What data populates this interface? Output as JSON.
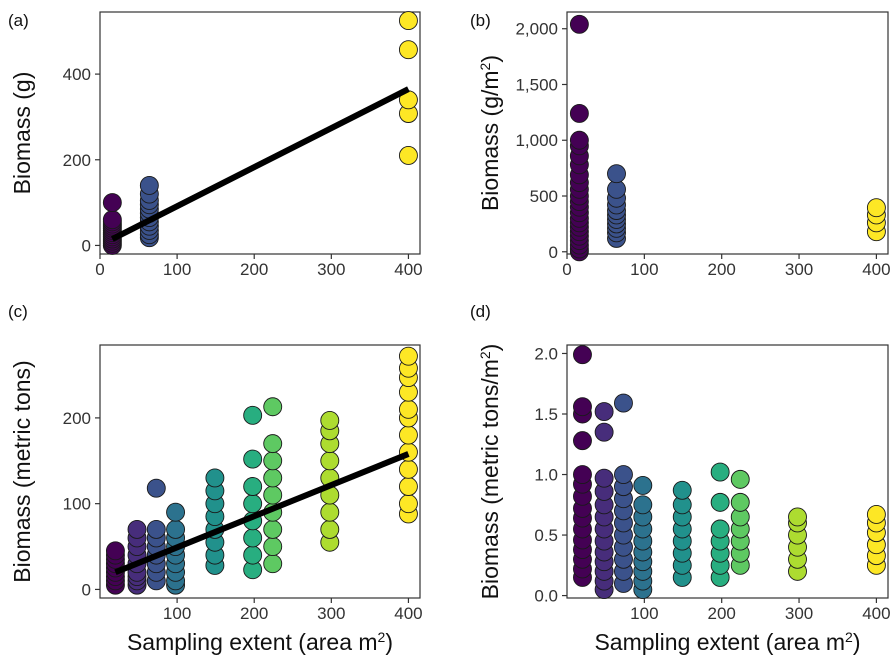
{
  "chart_data": [
    {
      "id": "a",
      "panel_label": "(a)",
      "type": "scatter",
      "xlabel": "",
      "ylabel_parts": [
        "Biomass (g)"
      ],
      "xlim": [
        0,
        415
      ],
      "ylim": [
        -20,
        545
      ],
      "xticks": [
        0,
        100,
        200,
        300,
        400
      ],
      "yticks": [
        0,
        200,
        400
      ],
      "ytick_labels": [
        "0",
        "200",
        "400"
      ],
      "groups": [
        {
          "x": 16,
          "color": "#440154",
          "y": [
            0,
            5,
            10,
            15,
            20,
            25,
            30,
            35,
            40,
            45,
            50,
            55,
            60,
            100
          ]
        },
        {
          "x": 64,
          "color": "#3b528b",
          "y": [
            18,
            25,
            35,
            45,
            55,
            65,
            75,
            85,
            95,
            105,
            120,
            140
          ]
        },
        {
          "x": 400,
          "color": "#fde725",
          "y": [
            210,
            308,
            340,
            457,
            525
          ]
        }
      ],
      "fit": {
        "x": [
          16,
          400
        ],
        "y": [
          15,
          365
        ]
      }
    },
    {
      "id": "b",
      "panel_label": "(b)",
      "type": "scatter",
      "xlabel": "",
      "ylabel_parts": [
        "Biomass (g/m",
        "2",
        ")"
      ],
      "xlim": [
        0,
        415
      ],
      "ylim": [
        -20,
        2150
      ],
      "xticks": [
        0,
        100,
        200,
        300,
        400
      ],
      "yticks": [
        0,
        500,
        1000,
        1500,
        2000
      ],
      "ytick_labels": [
        "0",
        "500",
        "1,000",
        "1,500",
        "2,000"
      ],
      "groups": [
        {
          "x": 16,
          "color": "#440154",
          "y": [
            0,
            25,
            60,
            100,
            140,
            180,
            220,
            260,
            300,
            350,
            400,
            450,
            500,
            560,
            620,
            690,
            780,
            860,
            950,
            1000,
            1240,
            2040
          ]
        },
        {
          "x": 64,
          "color": "#3b528b",
          "y": [
            120,
            170,
            210,
            250,
            290,
            330,
            370,
            420,
            480,
            560,
            700
          ]
        },
        {
          "x": 400,
          "color": "#fde725",
          "y": [
            180,
            260,
            330,
            395
          ]
        }
      ]
    },
    {
      "id": "c",
      "panel_label": "(c)",
      "type": "scatter",
      "xlabel_parts": [
        "Sampling extent (area m",
        "2",
        ")"
      ],
      "ylabel_parts": [
        "Biomass (metric tons)"
      ],
      "xlim": [
        0,
        415
      ],
      "ylim": [
        -10,
        285
      ],
      "xticks": [
        100,
        200,
        300,
        400
      ],
      "yticks": [
        0,
        100,
        200
      ],
      "ytick_labels": [
        "0",
        "100",
        "200"
      ],
      "groups": [
        {
          "x": 20,
          "color": "#440154",
          "y": [
            5,
            10,
            15,
            20,
            25,
            30,
            35,
            40,
            45
          ]
        },
        {
          "x": 48,
          "color": "#472d7b",
          "y": [
            5,
            10,
            15,
            20,
            30,
            40,
            50,
            60,
            70
          ]
        },
        {
          "x": 73,
          "color": "#3b528b",
          "y": [
            10,
            20,
            30,
            40,
            50,
            60,
            70,
            118
          ]
        },
        {
          "x": 98,
          "color": "#2c728e",
          "y": [
            5,
            10,
            20,
            30,
            40,
            50,
            60,
            70,
            90
          ]
        },
        {
          "x": 149,
          "color": "#21918c",
          "y": [
            28,
            40,
            55,
            70,
            85,
            100,
            115,
            130
          ]
        },
        {
          "x": 198,
          "color": "#28ae80",
          "y": [
            23,
            40,
            60,
            80,
            100,
            120,
            152,
            203
          ]
        },
        {
          "x": 224,
          "color": "#5ec962",
          "y": [
            30,
            50,
            70,
            90,
            110,
            130,
            150,
            170,
            213
          ]
        },
        {
          "x": 298,
          "color": "#addc30",
          "y": [
            55,
            70,
            90,
            110,
            130,
            150,
            170,
            185,
            197
          ]
        },
        {
          "x": 400,
          "color": "#fde725",
          "y": [
            88,
            100,
            120,
            140,
            160,
            180,
            200,
            210,
            230,
            247,
            258,
            272
          ]
        }
      ],
      "fit": {
        "x": [
          20,
          400
        ],
        "y": [
          20,
          158
        ]
      }
    },
    {
      "id": "d",
      "panel_label": "(d)",
      "type": "scatter",
      "xlabel_parts": [
        "Sampling extent (area m",
        "2",
        ")"
      ],
      "ylabel_parts": [
        "Biomass (metric tons/m",
        "2",
        ")"
      ],
      "xlim": [
        0,
        415
      ],
      "ylim": [
        -0.02,
        2.07
      ],
      "xticks": [
        100,
        200,
        300,
        400
      ],
      "yticks": [
        0,
        0.5,
        1,
        1.5,
        2
      ],
      "ytick_labels": [
        "0.0",
        "0.5",
        "1.0",
        "1.5",
        "2.0"
      ],
      "groups": [
        {
          "x": 20,
          "color": "#440154",
          "y": [
            0.15,
            0.22,
            0.3,
            0.38,
            0.46,
            0.55,
            0.64,
            0.72,
            0.82,
            0.92,
            1.0,
            1.28,
            1.5,
            1.56,
            1.99
          ]
        },
        {
          "x": 48,
          "color": "#472d7b",
          "y": [
            0.05,
            0.12,
            0.2,
            0.28,
            0.36,
            0.45,
            0.55,
            0.65,
            0.75,
            0.86,
            0.97,
            1.35,
            1.52
          ]
        },
        {
          "x": 73,
          "color": "#3b528b",
          "y": [
            0.1,
            0.2,
            0.3,
            0.4,
            0.5,
            0.6,
            0.7,
            0.8,
            0.9,
            1.0,
            1.59
          ]
        },
        {
          "x": 98,
          "color": "#2c728e",
          "y": [
            0.05,
            0.12,
            0.2,
            0.28,
            0.36,
            0.45,
            0.55,
            0.65,
            0.75,
            0.91
          ]
        },
        {
          "x": 149,
          "color": "#21918c",
          "y": [
            0.15,
            0.25,
            0.35,
            0.45,
            0.55,
            0.65,
            0.75,
            0.87
          ]
        },
        {
          "x": 198,
          "color": "#28ae80",
          "y": [
            0.15,
            0.25,
            0.35,
            0.45,
            0.55,
            0.77,
            1.02
          ]
        },
        {
          "x": 224,
          "color": "#5ec962",
          "y": [
            0.25,
            0.35,
            0.45,
            0.55,
            0.65,
            0.77,
            0.96
          ]
        },
        {
          "x": 298,
          "color": "#addc30",
          "y": [
            0.2,
            0.3,
            0.4,
            0.5,
            0.6,
            0.65
          ]
        },
        {
          "x": 400,
          "color": "#fde725",
          "y": [
            0.25,
            0.33,
            0.42,
            0.52,
            0.6,
            0.67
          ]
        }
      ]
    }
  ]
}
